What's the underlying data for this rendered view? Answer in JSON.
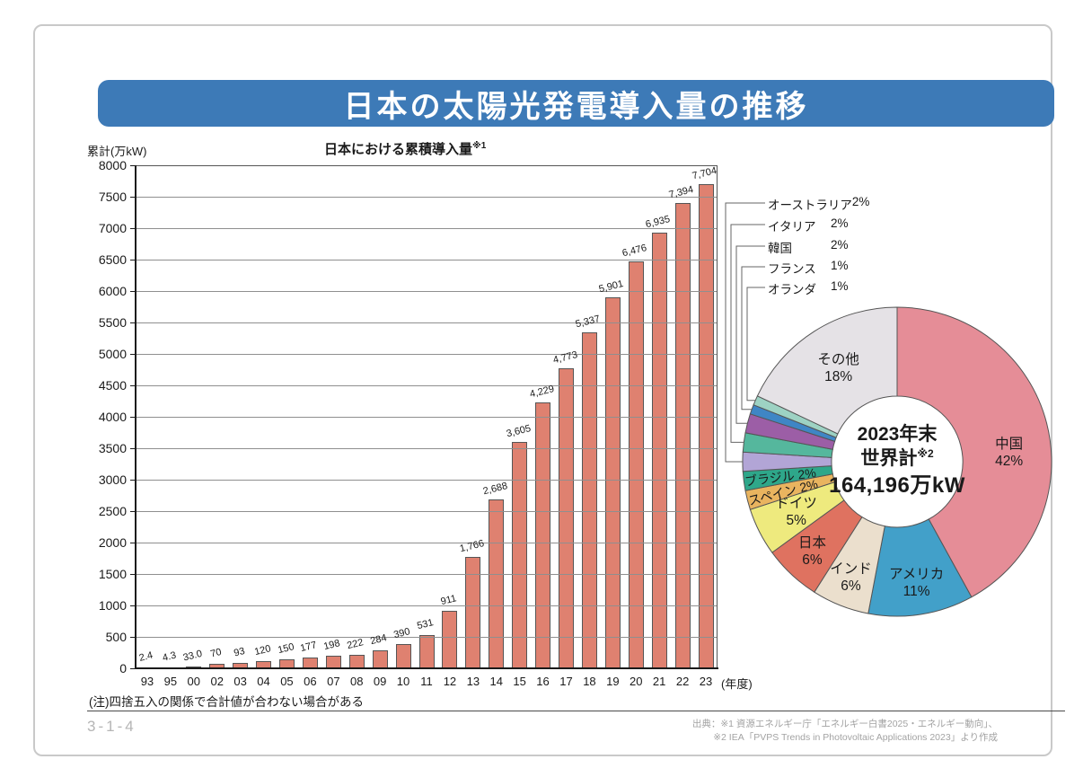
{
  "page": {
    "title": "日本の太陽光発電導入量の推移",
    "page_number": "3-1-4",
    "note": "(注)四捨五入の関係で合計値が合わない場合がある",
    "source_line1": "出典：※1 資源エネルギー庁「エネルギー白書2025・エネルギー動向」、",
    "source_line2": "※2 IEA「PVPS Trends in Photovoltaic Applications 2023」より作成",
    "colors": {
      "title_bar": "#3d7ab7",
      "bar_fill": "#df8170",
      "card_border": "#c9c9c9"
    }
  },
  "chart_data": [
    {
      "type": "bar",
      "title_main": "日本における累積導入量",
      "title_sup": "※1",
      "unit_label": "累計(万kW)",
      "x_suffix": "(年度)",
      "categories": [
        "93",
        "95",
        "00",
        "02",
        "03",
        "04",
        "05",
        "06",
        "07",
        "08",
        "09",
        "10",
        "11",
        "12",
        "13",
        "14",
        "15",
        "16",
        "17",
        "18",
        "19",
        "20",
        "21",
        "22",
        "23"
      ],
      "values": [
        2.4,
        4.3,
        33.0,
        70,
        93,
        120,
        150,
        177,
        198,
        222,
        284,
        390,
        531,
        911,
        1766,
        2688,
        3605,
        4229,
        4773,
        5337,
        5901,
        6476,
        6935,
        7394,
        7704
      ],
      "value_labels": [
        "2.4",
        "4.3",
        "33.0",
        "70",
        "93",
        "120",
        "150",
        "177",
        "198",
        "222",
        "284",
        "390",
        "531",
        "911",
        "1,766",
        "2,688",
        "3,605",
        "4,229",
        "4,773",
        "5,337",
        "5,901",
        "6,476",
        "6,935",
        "7,394",
        "7,704"
      ],
      "ylabel": "累計(万kW)",
      "ylim": [
        0,
        8000
      ],
      "ytick_step": 500,
      "grid": true,
      "bar_color": "#df8170"
    },
    {
      "type": "pie",
      "center_line1": "2023年末",
      "center_line2_main": "世界計",
      "center_line2_sup": "※2",
      "center_line3": "164,196万kW",
      "slices": [
        {
          "label": "中国",
          "pct": 42,
          "color": "#e58d97",
          "label_mode": "inside"
        },
        {
          "label": "アメリカ",
          "pct": 11,
          "color": "#42a0c9",
          "label_mode": "inside"
        },
        {
          "label": "インド",
          "pct": 6,
          "color": "#ebdfcd",
          "label_mode": "inside"
        },
        {
          "label": "日本",
          "pct": 6,
          "color": "#df7260",
          "label_mode": "inside"
        },
        {
          "label": "ドイツ",
          "pct": 5,
          "color": "#eeea7e",
          "label_mode": "inside"
        },
        {
          "label": "スペイン",
          "pct": 2,
          "color": "#e9b45f",
          "label_mode": "tilted"
        },
        {
          "label": "ブラジル",
          "pct": 2,
          "color": "#2ea78a",
          "label_mode": "tilted"
        },
        {
          "label": "オーストラリア",
          "pct": 2,
          "color": "#b2a5d6",
          "label_mode": "callout"
        },
        {
          "label": "イタリア",
          "pct": 2,
          "color": "#55b79d",
          "label_mode": "callout"
        },
        {
          "label": "韓国",
          "pct": 2,
          "color": "#9c5ea6",
          "label_mode": "callout"
        },
        {
          "label": "フランス",
          "pct": 1,
          "color": "#3f86c5",
          "label_mode": "callout"
        },
        {
          "label": "オランダ",
          "pct": 1,
          "color": "#9dd2c3",
          "label_mode": "callout"
        },
        {
          "label": "その他",
          "pct": 18,
          "color": "#e5e2e6",
          "label_mode": "inside"
        }
      ]
    }
  ]
}
